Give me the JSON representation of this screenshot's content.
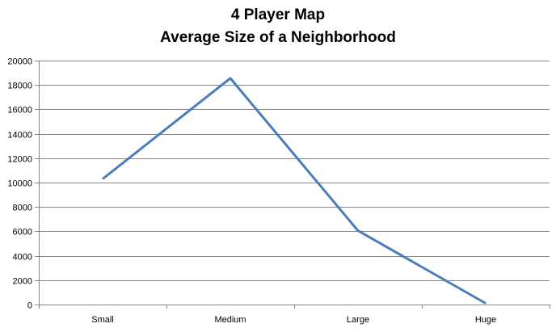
{
  "chart_data": {
    "type": "line",
    "title": "4 Player Map",
    "subtitle": "Average Size of a Neighborhood",
    "xlabel": "",
    "ylabel": "",
    "categories": [
      "Small",
      "Medium",
      "Large",
      "Huge"
    ],
    "series": [
      {
        "values": [
          10300,
          18550,
          6050,
          100
        ],
        "color": "#4a7ebb"
      }
    ],
    "ylim": [
      0,
      20000
    ],
    "yticks": [
      0,
      2000,
      4000,
      6000,
      8000,
      10000,
      12000,
      14000,
      16000,
      18000,
      20000
    ],
    "ytick_labels": [
      "0",
      "2000",
      "4000",
      "6000",
      "8000",
      "10000",
      "12000",
      "14000",
      "16000",
      "18000",
      "20000"
    ],
    "grid": true,
    "legend": "none"
  }
}
